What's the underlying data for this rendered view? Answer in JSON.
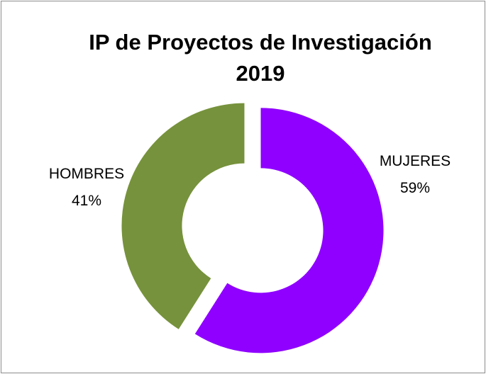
{
  "chart_data": {
    "type": "pie",
    "variant": "donut",
    "title": [
      "IP de Proyectos de Investigación",
      "2019"
    ],
    "slices": [
      {
        "label": "MUJERES",
        "value": 59,
        "display": "59%",
        "color": "#8F00FF"
      },
      {
        "label": "HOMBRES",
        "value": 41,
        "display": "41%",
        "color": "#76923C"
      }
    ],
    "legend": "none",
    "data_labels": "outside"
  }
}
